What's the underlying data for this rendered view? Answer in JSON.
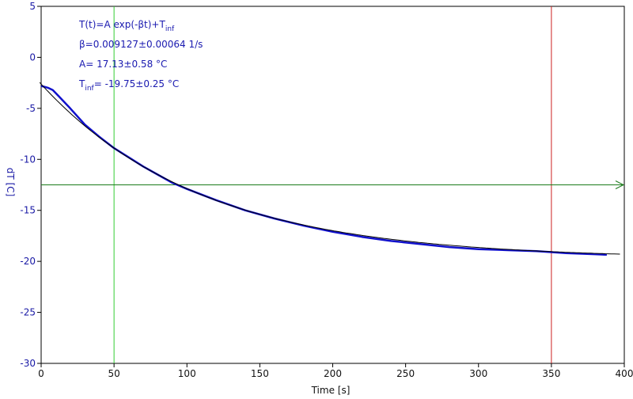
{
  "chart_data": {
    "type": "line",
    "title": "",
    "xlabel": "Time [s]",
    "ylabel": "dT [C]",
    "xlim": [
      0,
      400
    ],
    "ylim": [
      -30,
      5
    ],
    "x_ticks": [
      0,
      50,
      100,
      150,
      200,
      250,
      300,
      350,
      400
    ],
    "y_ticks": [
      5,
      0,
      -5,
      -10,
      -15,
      -20,
      -25,
      -30
    ],
    "grid": false,
    "annotations": [
      {
        "prefix": "T(t)=A exp(-βt)+T",
        "sub": "inf",
        "suffix": ""
      },
      {
        "prefix": "β=0.009127±0.00064 1/s",
        "sub": "",
        "suffix": ""
      },
      {
        "prefix": "A= 17.13±0.58 °C",
        "sub": "",
        "suffix": ""
      },
      {
        "prefix": "T",
        "sub": "inf",
        "suffix": "= -19.75±0.25 °C"
      }
    ],
    "cursors": {
      "vertical": [
        {
          "x": 50,
          "color": "#33cc33"
        },
        {
          "x": 350,
          "color": "#cc2222"
        }
      ],
      "horizontal": {
        "y": -12.5,
        "color": "#1a7a1a"
      }
    },
    "series": [
      {
        "kind": "data",
        "color": "#1111cc",
        "x": [
          0,
          5,
          8,
          12,
          20,
          30,
          40,
          50,
          60,
          70,
          80,
          90,
          100,
          120,
          140,
          160,
          180,
          200,
          220,
          240,
          260,
          280,
          300,
          320,
          340,
          360,
          380,
          388
        ],
        "y": [
          -2.8,
          -3.0,
          -3.2,
          -3.8,
          -5.0,
          -6.6,
          -7.8,
          -8.9,
          -9.8,
          -10.7,
          -11.5,
          -12.3,
          -12.9,
          -14.0,
          -15.0,
          -15.8,
          -16.5,
          -17.1,
          -17.6,
          -18.0,
          -18.3,
          -18.6,
          -18.8,
          -18.9,
          -19.0,
          -19.2,
          -19.3,
          -19.35
        ]
      },
      {
        "kind": "fit",
        "color": "#000000",
        "x_start": -1,
        "x_end": 398,
        "A": 17.13,
        "beta": 0.009127,
        "T_inf": -19.75
      }
    ]
  }
}
